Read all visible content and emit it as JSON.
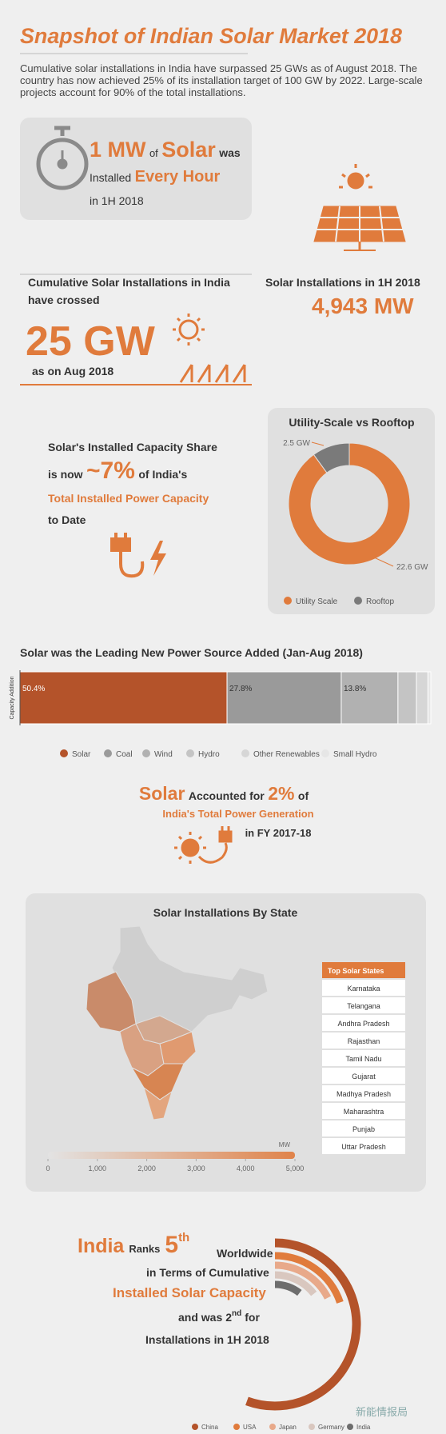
{
  "title": "Snapshot of Indian Solar Market 2018",
  "intro": "Cumulative solar installations in India have surpassed 25 GWs as of August 2018. The country has now achieved 25% of its installation target of 100 GW by 2022. Large-scale projects account for 90% of the total installations.",
  "hourly": {
    "amount": "1 MW",
    "of": "of",
    "solar": "Solar",
    "was": "was",
    "installed": "Installed",
    "every_hour": "Every Hour",
    "period": "in 1H 2018"
  },
  "cumulative": {
    "label": "Cumulative Solar Installations in India",
    "label2": "have crossed",
    "value": "25 GW",
    "date": "as on Aug 2018"
  },
  "h1": {
    "label": "Solar Installations in 1H 2018",
    "value": "4,943 MW"
  },
  "share": {
    "line1": "Solar's Installed Capacity Share",
    "is_now": "is now",
    "value": "~7%",
    "of": "of India's",
    "line3": "Total Installed Power Capacity",
    "line4": "to Date"
  },
  "generation": {
    "solar": "Solar",
    "accounted": "Accounted for",
    "value": "2%",
    "of": "of",
    "line2": "India's Total Power Generation",
    "line3": "in FY 2017-18"
  },
  "map": {
    "title": "Solar Installations By State",
    "table_header": "Top Solar States",
    "states": [
      "Karnataka",
      "Telangana",
      "Andhra Pradesh",
      "Rajasthan",
      "Tamil Nadu",
      "Gujarat",
      "Madhya Pradesh",
      "Maharashtra",
      "Punjab",
      "Uttar Pradesh"
    ]
  },
  "ranking": {
    "india": "India",
    "ranks": "Ranks",
    "rank": "5",
    "rank_suffix": "th",
    "worldwide": "Worldwide",
    "line2": "in Terms of Cumulative",
    "line3": "Installed Solar Capacity",
    "and_was": "and was",
    "rank2": "2",
    "rank2_suffix": "nd",
    "for": "for",
    "line5": "Installations in 1H 2018"
  },
  "watermark": "新能情报局",
  "chart_data": [
    {
      "type": "pie",
      "donut": true,
      "title": "Utility-Scale vs Rooftop",
      "categories": [
        "Utility Scale",
        "Rooftop"
      ],
      "values": [
        22.6,
        2.5
      ],
      "value_labels": [
        "22.6 GW",
        "2.5 GW"
      ],
      "colors": [
        "#e07b3c",
        "#7a7a7a"
      ]
    },
    {
      "type": "bar",
      "orientation": "horizontal",
      "stacked": true,
      "title": "Solar was the Leading New Power Source Added (Jan-Aug 2018)",
      "ylabel": "Capacity Addition",
      "xlim": [
        0,
        100
      ],
      "series": [
        {
          "name": "Solar",
          "color": "#b4532a",
          "values": [
            50.4
          ],
          "value_labels": [
            "50.4%"
          ]
        },
        {
          "name": "Coal",
          "color": "#9a9a9a",
          "values": [
            27.8
          ],
          "value_labels": [
            "27.8%"
          ]
        },
        {
          "name": "Wind",
          "color": "#b1b1b1",
          "values": [
            13.8
          ],
          "value_labels": [
            "13.8%"
          ]
        },
        {
          "name": "Hydro",
          "color": "#c4c4c4",
          "values": [
            4.5
          ]
        },
        {
          "name": "Other Renewables",
          "color": "#d6d6d6",
          "values": [
            2.8
          ]
        },
        {
          "name": "Small Hydro",
          "color": "#e6e6e6",
          "values": [
            0.7
          ]
        }
      ]
    },
    {
      "type": "colorbar",
      "unit": "MW",
      "xlim": [
        0,
        5000
      ],
      "colors": [
        "#e3e3e3",
        "#e0834a"
      ],
      "xticks": [
        0,
        {
          "value": 1000,
          "label": "1,000"
        },
        {
          "value": 2000,
          "label": "2,000"
        },
        {
          "value": 3000,
          "label": "3,000"
        },
        {
          "value": 4000,
          "label": "4,000"
        },
        {
          "value": 5000,
          "label": "5,000"
        }
      ]
    },
    {
      "type": "radialbar",
      "categories": [
        "China",
        "USA",
        "Japan",
        "Germany",
        "India"
      ],
      "values": [
        174,
        62,
        55,
        45,
        33
      ],
      "colors": [
        "#b4532a",
        "#e07b3c",
        "#e8a98a",
        "#d9c7bf",
        "#6d6d6d"
      ]
    }
  ]
}
